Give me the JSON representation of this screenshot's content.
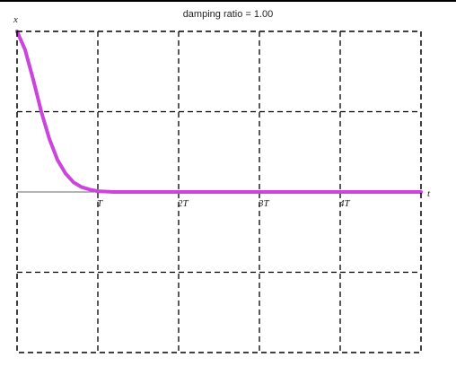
{
  "chart_data": {
    "type": "line",
    "title": "damping ratio = 1.00",
    "xlabel": "t",
    "ylabel": "x",
    "x_ticks": [
      "T",
      "2T",
      "3T",
      "4T"
    ],
    "xlim": [
      0,
      5
    ],
    "ylim": [
      -2,
      2
    ],
    "grid": true,
    "colors": {
      "curve": "#cc44dd",
      "axis": "#888888",
      "grid": "#000000"
    },
    "series": [
      {
        "x": [
          0,
          0.1,
          0.2,
          0.3,
          0.4,
          0.5,
          0.6,
          0.7,
          0.8,
          0.9,
          1.0,
          1.2,
          1.5,
          2,
          3,
          4,
          5
        ],
        "values": [
          2,
          1.77,
          1.4,
          1.0,
          0.66,
          0.4,
          0.23,
          0.12,
          0.06,
          0.03,
          0.01,
          0,
          0,
          0,
          0,
          0,
          0
        ]
      }
    ]
  }
}
